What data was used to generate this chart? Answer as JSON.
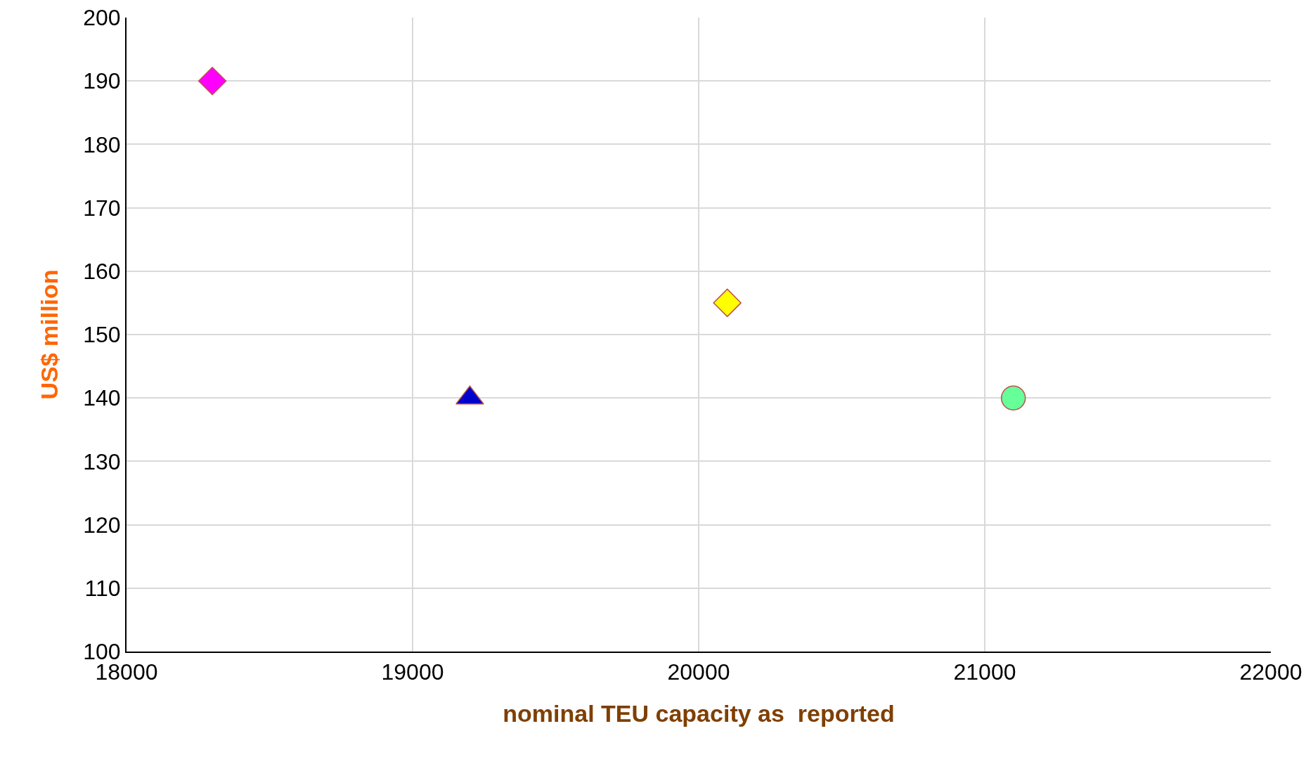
{
  "chart_data": {
    "type": "scatter",
    "xlabel": "nominal TEU capacity as  reported",
    "ylabel": "US$ million",
    "xlim": [
      18000,
      22000
    ],
    "xticks": [
      18000,
      19000,
      20000,
      21000,
      22000
    ],
    "ylim": [
      100,
      200
    ],
    "yticks": [
      100,
      110,
      120,
      130,
      140,
      150,
      160,
      170,
      180,
      190,
      200
    ],
    "grid": true,
    "series": [
      {
        "color": "#ff00ff",
        "marker": "diamond",
        "x": [
          18300
        ],
        "values": [
          190
        ]
      },
      {
        "color": "#0000cc",
        "marker": "triangle",
        "x": [
          19200
        ],
        "values": [
          140
        ]
      },
      {
        "color": "#ffff00",
        "marker": "diamond",
        "x": [
          20100
        ],
        "values": [
          155
        ]
      },
      {
        "color": "#66ff99",
        "marker": "circle",
        "x": [
          21100
        ],
        "values": [
          140
        ]
      }
    ]
  }
}
